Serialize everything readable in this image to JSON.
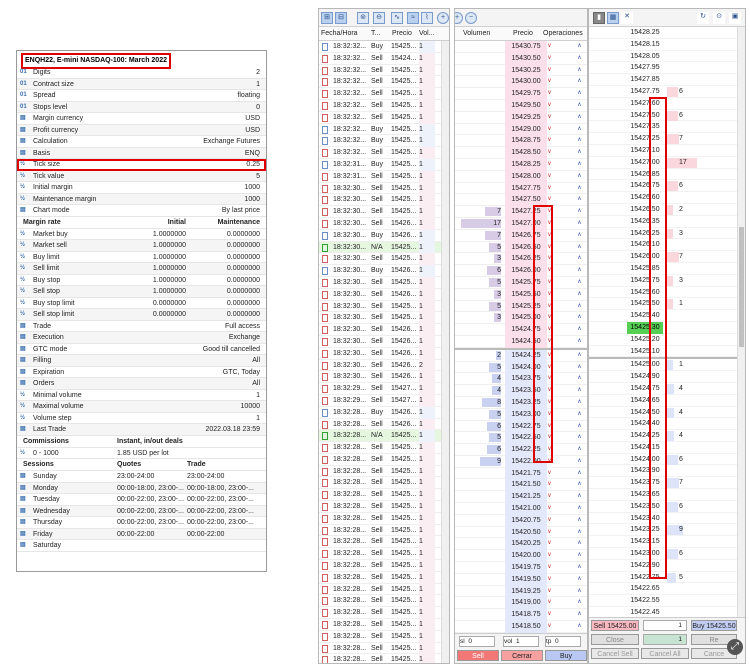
{
  "spec": {
    "title": "ENQH22, E-mini NASDAQ-100: March 2022",
    "rows": [
      {
        "icon": "01",
        "key": "Digits",
        "value": "2"
      },
      {
        "icon": "01",
        "key": "Contract size",
        "value": "1"
      },
      {
        "icon": "01",
        "key": "Spread",
        "value": "floating"
      },
      {
        "icon": "01",
        "key": "Stops level",
        "value": "0"
      },
      {
        "icon": "▤",
        "key": "Margin currency",
        "value": "USD"
      },
      {
        "icon": "▤",
        "key": "Profit currency",
        "value": "USD"
      },
      {
        "icon": "▤",
        "key": "Calculation",
        "value": "Exchange Futures"
      },
      {
        "icon": "▤",
        "key": "Basis",
        "value": "ENQ"
      },
      {
        "icon": "½",
        "key": "Tick size",
        "value": "0.25"
      },
      {
        "icon": "½",
        "key": "Tick value",
        "value": "5"
      },
      {
        "icon": "½",
        "key": "Initial margin",
        "value": "1000"
      },
      {
        "icon": "½",
        "key": "Maintenance margin",
        "value": "1000"
      },
      {
        "icon": "▤",
        "key": "Chart mode",
        "value": "By last price"
      }
    ],
    "margin_header": {
      "c1": "Margin rate",
      "c2": "Initial",
      "c3": "Maintenance"
    },
    "margin_rows": [
      {
        "key": "Market buy",
        "init": "1.0000000",
        "maint": "0.0000000"
      },
      {
        "key": "Market sell",
        "init": "1.0000000",
        "maint": "0.0000000"
      },
      {
        "key": "Buy limit",
        "init": "1.0000000",
        "maint": "0.0000000"
      },
      {
        "key": "Sell limit",
        "init": "1.0000000",
        "maint": "0.0000000"
      },
      {
        "key": "Buy stop",
        "init": "1.0000000",
        "maint": "0.0000000"
      },
      {
        "key": "Sell stop",
        "init": "1.0000000",
        "maint": "0.0000000"
      },
      {
        "key": "Buy stop limit",
        "init": "0.0000000",
        "maint": "0.0000000"
      },
      {
        "key": "Sell stop limit",
        "init": "0.0000000",
        "maint": "0.0000000"
      }
    ],
    "rows2": [
      {
        "icon": "▤",
        "key": "Trade",
        "value": "Full access"
      },
      {
        "icon": "▤",
        "key": "Execution",
        "value": "Exchange"
      },
      {
        "icon": "▤",
        "key": "GTC mode",
        "value": "Good till cancelled"
      },
      {
        "icon": "▤",
        "key": "Filling",
        "value": "All"
      },
      {
        "icon": "▤",
        "key": "Expiration",
        "value": "GTC, Today"
      },
      {
        "icon": "▤",
        "key": "Orders",
        "value": "All"
      },
      {
        "icon": "½",
        "key": "Minimal volume",
        "value": "1"
      },
      {
        "icon": "½",
        "key": "Maximal volume",
        "value": "10000"
      },
      {
        "icon": "½",
        "key": "Volume step",
        "value": "1"
      },
      {
        "icon": "▤",
        "key": "Last Trade",
        "value": "2022.03.18 23:59"
      }
    ],
    "commissions_header": {
      "c1": "Commissions",
      "c2": "Instant, in/out deals"
    },
    "commissions_rows": [
      {
        "c1": "0 - 1000",
        "c2": "1.85 USD per lot"
      }
    ],
    "sessions_header": {
      "c1": "Sessions",
      "c2": "Quotes",
      "c3": "Trade"
    },
    "sessions_rows": [
      {
        "day": "Sunday",
        "quotes": "23:00-24:00",
        "trade": "23:00-24:00"
      },
      {
        "day": "Monday",
        "quotes": "00:00-18:00, 23:00-...",
        "trade": "00:00-18:00, 23:00-..."
      },
      {
        "day": "Tuesday",
        "quotes": "00:00-22:00, 23:00-...",
        "trade": "00:00-22:00, 23:00-..."
      },
      {
        "day": "Wednesday",
        "quotes": "00:00-22:00, 23:00-...",
        "trade": "00:00-22:00, 23:00-..."
      },
      {
        "day": "Thursday",
        "quotes": "00:00-22:00, 23:00-...",
        "trade": "00:00-22:00, 23:00-..."
      },
      {
        "day": "Friday",
        "quotes": "00:00-22:00",
        "trade": "00:00-22:00"
      },
      {
        "day": "Saturday",
        "quotes": "",
        "trade": ""
      }
    ]
  },
  "time_sales": {
    "headers": {
      "time": "Fecha/Hora",
      "type": "T...",
      "price": "Precio",
      "vol": "Vol..."
    },
    "rows": [
      {
        "time": "18:32:32...",
        "type": "Buy",
        "price": "15425...",
        "vol": "1"
      },
      {
        "time": "18:32:32...",
        "type": "Sell",
        "price": "15424...",
        "vol": "1"
      },
      {
        "time": "18:32:32...",
        "type": "Sell",
        "price": "15425...",
        "vol": "1"
      },
      {
        "time": "18:32:32...",
        "type": "Sell",
        "price": "15425...",
        "vol": "1"
      },
      {
        "time": "18:32:32...",
        "type": "Sell",
        "price": "15425...",
        "vol": "1"
      },
      {
        "time": "18:32:32...",
        "type": "Sell",
        "price": "15425...",
        "vol": "1"
      },
      {
        "time": "18:32:32...",
        "type": "Sell",
        "price": "15425...",
        "vol": "1"
      },
      {
        "time": "18:32:32...",
        "type": "Buy",
        "price": "15425...",
        "vol": "1"
      },
      {
        "time": "18:32:32...",
        "type": "Buy",
        "price": "15425...",
        "vol": "1"
      },
      {
        "time": "18:32:32...",
        "type": "Sell",
        "price": "15425...",
        "vol": "1"
      },
      {
        "time": "18:32:31...",
        "type": "Buy",
        "price": "15425...",
        "vol": "1"
      },
      {
        "time": "18:32:31...",
        "type": "Sell",
        "price": "15425...",
        "vol": "1"
      },
      {
        "time": "18:32:30...",
        "type": "Sell",
        "price": "15425...",
        "vol": "1"
      },
      {
        "time": "18:32:30...",
        "type": "Sell",
        "price": "15425...",
        "vol": "1"
      },
      {
        "time": "18:32:30...",
        "type": "Sell",
        "price": "15425...",
        "vol": "1"
      },
      {
        "time": "18:32:30...",
        "type": "Sell",
        "price": "15426...",
        "vol": "1"
      },
      {
        "time": "18:32:30...",
        "type": "Buy",
        "price": "15426...",
        "vol": "1"
      },
      {
        "time": "18:32:30...",
        "type": "N/A",
        "price": "15425...",
        "vol": "1"
      },
      {
        "time": "18:32:30...",
        "type": "Sell",
        "price": "15425...",
        "vol": "1"
      },
      {
        "time": "18:32:30...",
        "type": "Buy",
        "price": "15426...",
        "vol": "1"
      },
      {
        "time": "18:32:30...",
        "type": "Sell",
        "price": "15425...",
        "vol": "1"
      },
      {
        "time": "18:32:30...",
        "type": "Sell",
        "price": "15426...",
        "vol": "1"
      },
      {
        "time": "18:32:30...",
        "type": "Sell",
        "price": "15425...",
        "vol": "1"
      },
      {
        "time": "18:32:30...",
        "type": "Sell",
        "price": "15425...",
        "vol": "1"
      },
      {
        "time": "18:32:30...",
        "type": "Sell",
        "price": "15426...",
        "vol": "1"
      },
      {
        "time": "18:32:30...",
        "type": "Sell",
        "price": "15426...",
        "vol": "1"
      },
      {
        "time": "18:32:30...",
        "type": "Sell",
        "price": "15426...",
        "vol": "1"
      },
      {
        "time": "18:32:30...",
        "type": "Sell",
        "price": "15426...",
        "vol": "2"
      },
      {
        "time": "18:32:30...",
        "type": "Sell",
        "price": "15426...",
        "vol": "1"
      },
      {
        "time": "18:32:29...",
        "type": "Sell",
        "price": "15427...",
        "vol": "1"
      },
      {
        "time": "18:32:29...",
        "type": "Sell",
        "price": "15427...",
        "vol": "1"
      },
      {
        "time": "18:32:28...",
        "type": "Buy",
        "price": "15426...",
        "vol": "1"
      },
      {
        "time": "18:32:28...",
        "type": "Sell",
        "price": "15426...",
        "vol": "1"
      },
      {
        "time": "18:32:28...",
        "type": "N/A",
        "price": "15425...",
        "vol": "1"
      },
      {
        "time": "18:32:28...",
        "type": "Sell",
        "price": "15425...",
        "vol": "1"
      },
      {
        "time": "18:32:28...",
        "type": "Sell",
        "price": "15425...",
        "vol": "1"
      },
      {
        "time": "18:32:28...",
        "type": "Sell",
        "price": "15425...",
        "vol": "1"
      },
      {
        "time": "18:32:28...",
        "type": "Sell",
        "price": "15425...",
        "vol": "1"
      },
      {
        "time": "18:32:28...",
        "type": "Sell",
        "price": "15425...",
        "vol": "1"
      },
      {
        "time": "18:32:28...",
        "type": "Sell",
        "price": "15425...",
        "vol": "1"
      },
      {
        "time": "18:32:28...",
        "type": "Sell",
        "price": "15425...",
        "vol": "1"
      },
      {
        "time": "18:32:28...",
        "type": "Sell",
        "price": "15425...",
        "vol": "1"
      },
      {
        "time": "18:32:28...",
        "type": "Sell",
        "price": "15425...",
        "vol": "1"
      },
      {
        "time": "18:32:28...",
        "type": "Sell",
        "price": "15425...",
        "vol": "1"
      },
      {
        "time": "18:32:28...",
        "type": "Sell",
        "price": "15425...",
        "vol": "1"
      },
      {
        "time": "18:32:28...",
        "type": "Sell",
        "price": "15425...",
        "vol": "1"
      },
      {
        "time": "18:32:28...",
        "type": "Sell",
        "price": "15425...",
        "vol": "1"
      },
      {
        "time": "18:32:28...",
        "type": "Sell",
        "price": "15425...",
        "vol": "1"
      },
      {
        "time": "18:32:28...",
        "type": "Sell",
        "price": "15425...",
        "vol": "1"
      },
      {
        "time": "18:32:28...",
        "type": "Sell",
        "price": "15425...",
        "vol": "1"
      },
      {
        "time": "18:32:28...",
        "type": "Sell",
        "price": "15425...",
        "vol": "1"
      },
      {
        "time": "18:32:28...",
        "type": "Sell",
        "price": "15425...",
        "vol": "1"
      },
      {
        "time": "18:32:28...",
        "type": "Sell",
        "price": "15425...",
        "vol": "1"
      },
      {
        "time": "18:32:28...",
        "type": "Sell",
        "price": "15425...",
        "vol": "1"
      }
    ]
  },
  "order_book": {
    "headers": {
      "volume": "Volumen",
      "price": "Precio",
      "ops": "Operaciones"
    },
    "rows": [
      {
        "v": "",
        "p": "15430.75",
        "s": "ask"
      },
      {
        "v": "",
        "p": "15430.50",
        "s": "ask"
      },
      {
        "v": "",
        "p": "15430.25",
        "s": "ask"
      },
      {
        "v": "",
        "p": "15430.00",
        "s": "ask"
      },
      {
        "v": "",
        "p": "15429.75",
        "s": "ask"
      },
      {
        "v": "",
        "p": "15429.50",
        "s": "ask"
      },
      {
        "v": "",
        "p": "15429.25",
        "s": "ask"
      },
      {
        "v": "",
        "p": "15429.00",
        "s": "ask"
      },
      {
        "v": "",
        "p": "15428.75",
        "s": "ask"
      },
      {
        "v": "",
        "p": "15428.50",
        "s": "ask"
      },
      {
        "v": "",
        "p": "15428.25",
        "s": "ask"
      },
      {
        "v": "",
        "p": "15428.00",
        "s": "ask"
      },
      {
        "v": "",
        "p": "15427.75",
        "s": "ask"
      },
      {
        "v": "",
        "p": "15427.50",
        "s": "ask"
      },
      {
        "v": "7",
        "p": "15427.25",
        "s": "ask"
      },
      {
        "v": "17",
        "p": "15427.00",
        "s": "ask"
      },
      {
        "v": "7",
        "p": "15426.75",
        "s": "ask"
      },
      {
        "v": "5",
        "p": "15426.50",
        "s": "ask"
      },
      {
        "v": "3",
        "p": "15426.25",
        "s": "ask"
      },
      {
        "v": "6",
        "p": "15426.00",
        "s": "ask"
      },
      {
        "v": "5",
        "p": "15425.75",
        "s": "ask"
      },
      {
        "v": "3",
        "p": "15425.50",
        "s": "ask"
      },
      {
        "v": "5",
        "p": "15425.25",
        "s": "ask"
      },
      {
        "v": "3",
        "p": "15425.00",
        "s": "ask"
      },
      {
        "v": "",
        "p": "15424.75",
        "s": "ask"
      },
      {
        "v": "",
        "p": "15424.50",
        "s": "ask"
      },
      {
        "v": "2",
        "p": "15424.25",
        "s": "bid"
      },
      {
        "v": "5",
        "p": "15424.00",
        "s": "bid"
      },
      {
        "v": "4",
        "p": "15423.75",
        "s": "bid"
      },
      {
        "v": "4",
        "p": "15423.50",
        "s": "bid"
      },
      {
        "v": "8",
        "p": "15423.25",
        "s": "bid"
      },
      {
        "v": "5",
        "p": "15423.00",
        "s": "bid"
      },
      {
        "v": "6",
        "p": "15422.75",
        "s": "bid"
      },
      {
        "v": "5",
        "p": "15422.50",
        "s": "bid"
      },
      {
        "v": "6",
        "p": "15422.25",
        "s": "bid"
      },
      {
        "v": "9",
        "p": "15422.00",
        "s": "bid"
      },
      {
        "v": "",
        "p": "15421.75",
        "s": "bid"
      },
      {
        "v": "",
        "p": "15421.50",
        "s": "bid"
      },
      {
        "v": "",
        "p": "15421.25",
        "s": "bid"
      },
      {
        "v": "",
        "p": "15421.00",
        "s": "bid"
      },
      {
        "v": "",
        "p": "15420.75",
        "s": "bid"
      },
      {
        "v": "",
        "p": "15420.50",
        "s": "bid"
      },
      {
        "v": "",
        "p": "15420.25",
        "s": "bid"
      },
      {
        "v": "",
        "p": "15420.00",
        "s": "bid"
      },
      {
        "v": "",
        "p": "15419.75",
        "s": "bid"
      },
      {
        "v": "",
        "p": "15419.50",
        "s": "bid"
      },
      {
        "v": "",
        "p": "15419.25",
        "s": "bid"
      },
      {
        "v": "",
        "p": "15419.00",
        "s": "bid"
      },
      {
        "v": "",
        "p": "15418.75",
        "s": "bid"
      },
      {
        "v": "",
        "p": "15418.50",
        "s": "bid"
      }
    ],
    "footer": {
      "sl_label": "sl",
      "sl_value": "0",
      "vol_label": "vol",
      "vol_value": "1",
      "tp_label": "tp",
      "tp_value": "0",
      "sell": "Sell",
      "close": "Cerrar",
      "buy": "Buy"
    }
  },
  "ladder": {
    "rows": [
      {
        "p": "15428.25",
        "s": "",
        "q": ""
      },
      {
        "p": "15428.15",
        "s": "",
        "q": ""
      },
      {
        "p": "15428.05",
        "s": "",
        "q": ""
      },
      {
        "p": "15427.95",
        "s": "",
        "q": ""
      },
      {
        "p": "15427.85",
        "s": "",
        "q": ""
      },
      {
        "p": "15427.75",
        "s": "ask",
        "q": "6"
      },
      {
        "p": "15427.60",
        "s": "",
        "q": ""
      },
      {
        "p": "15427.50",
        "s": "ask",
        "q": "6"
      },
      {
        "p": "15427.35",
        "s": "",
        "q": ""
      },
      {
        "p": "15427.25",
        "s": "ask",
        "q": "7"
      },
      {
        "p": "15427.10",
        "s": "",
        "q": ""
      },
      {
        "p": "15427.00",
        "s": "ask",
        "q": "17"
      },
      {
        "p": "15426.85",
        "s": "",
        "q": ""
      },
      {
        "p": "15426.75",
        "s": "ask",
        "q": "6"
      },
      {
        "p": "15426.60",
        "s": "",
        "q": ""
      },
      {
        "p": "15426.50",
        "s": "ask",
        "q": "2"
      },
      {
        "p": "15426.35",
        "s": "",
        "q": ""
      },
      {
        "p": "15426.25",
        "s": "ask",
        "q": "3"
      },
      {
        "p": "15426.10",
        "s": "",
        "q": ""
      },
      {
        "p": "15426.00",
        "s": "ask",
        "q": "7"
      },
      {
        "p": "15425.85",
        "s": "",
        "q": ""
      },
      {
        "p": "15425.75",
        "s": "ask",
        "q": "3"
      },
      {
        "p": "15425.60",
        "s": "",
        "q": ""
      },
      {
        "p": "15425.50",
        "s": "ask",
        "q": "1"
      },
      {
        "p": "15425.40",
        "s": "",
        "q": ""
      },
      {
        "p": "15425.30",
        "s": "last",
        "q": ""
      },
      {
        "p": "15425.20",
        "s": "",
        "q": ""
      },
      {
        "p": "15425.10",
        "s": "",
        "q": ""
      },
      {
        "p": "15425.00",
        "s": "bid",
        "q": "1"
      },
      {
        "p": "15424.90",
        "s": "",
        "q": ""
      },
      {
        "p": "15424.75",
        "s": "bid",
        "q": "4"
      },
      {
        "p": "15424.65",
        "s": "",
        "q": ""
      },
      {
        "p": "15424.50",
        "s": "bid",
        "q": "4"
      },
      {
        "p": "15424.40",
        "s": "",
        "q": ""
      },
      {
        "p": "15424.25",
        "s": "bid",
        "q": "4"
      },
      {
        "p": "15424.15",
        "s": "",
        "q": ""
      },
      {
        "p": "15424.00",
        "s": "bid",
        "q": "6"
      },
      {
        "p": "15423.90",
        "s": "",
        "q": ""
      },
      {
        "p": "15423.75",
        "s": "bid",
        "q": "7"
      },
      {
        "p": "15423.65",
        "s": "",
        "q": ""
      },
      {
        "p": "15423.50",
        "s": "bid",
        "q": "6"
      },
      {
        "p": "15423.40",
        "s": "",
        "q": ""
      },
      {
        "p": "15423.25",
        "s": "bid",
        "q": "9"
      },
      {
        "p": "15423.15",
        "s": "",
        "q": ""
      },
      {
        "p": "15423.00",
        "s": "bid",
        "q": "6"
      },
      {
        "p": "15422.90",
        "s": "",
        "q": ""
      },
      {
        "p": "15422.75",
        "s": "bid",
        "q": "5"
      },
      {
        "p": "15422.65",
        "s": "",
        "q": ""
      },
      {
        "p": "15422.55",
        "s": "",
        "q": ""
      },
      {
        "p": "15422.45",
        "s": "",
        "q": ""
      },
      {
        "p": "15422.35",
        "s": "",
        "q": ""
      }
    ],
    "footer": {
      "sell": "Sell 15425.00",
      "vol": "1",
      "buy": "Buy 15425.50",
      "close": "Close",
      "vol2": "1",
      "r": "Re",
      "cancel_sell": "Cancel Sell",
      "cancel_all": "Cancel All",
      "cancel_buy": "Cance"
    }
  },
  "colors": {
    "highlight_red": "#e00000",
    "ask": "#f8b8c0",
    "bid": "#c0ccf0",
    "last": "#55d055"
  }
}
